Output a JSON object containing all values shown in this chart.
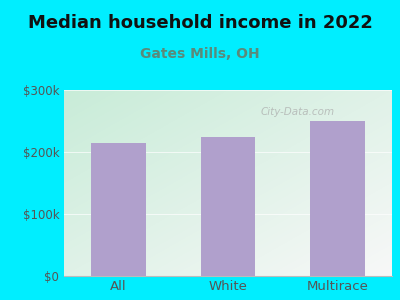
{
  "title": "Median household income in 2022",
  "subtitle": "Gates Mills, OH",
  "categories": [
    "All",
    "White",
    "Multirace"
  ],
  "values": [
    215000,
    225000,
    250000
  ],
  "bar_color": "#b0a0cc",
  "background_outer": "#00eeff",
  "background_top_left": "#c8ecd8",
  "background_bottom_right": "#f8f8f8",
  "title_fontsize": 13,
  "subtitle_fontsize": 10,
  "subtitle_color": "#5a8a7a",
  "tick_color": "#555555",
  "ylim": [
    0,
    300000
  ],
  "yticks": [
    0,
    100000,
    200000,
    300000
  ],
  "ytick_labels": [
    "$0",
    "$100k",
    "$200k",
    "$300k"
  ],
  "watermark": "City-Data.com"
}
